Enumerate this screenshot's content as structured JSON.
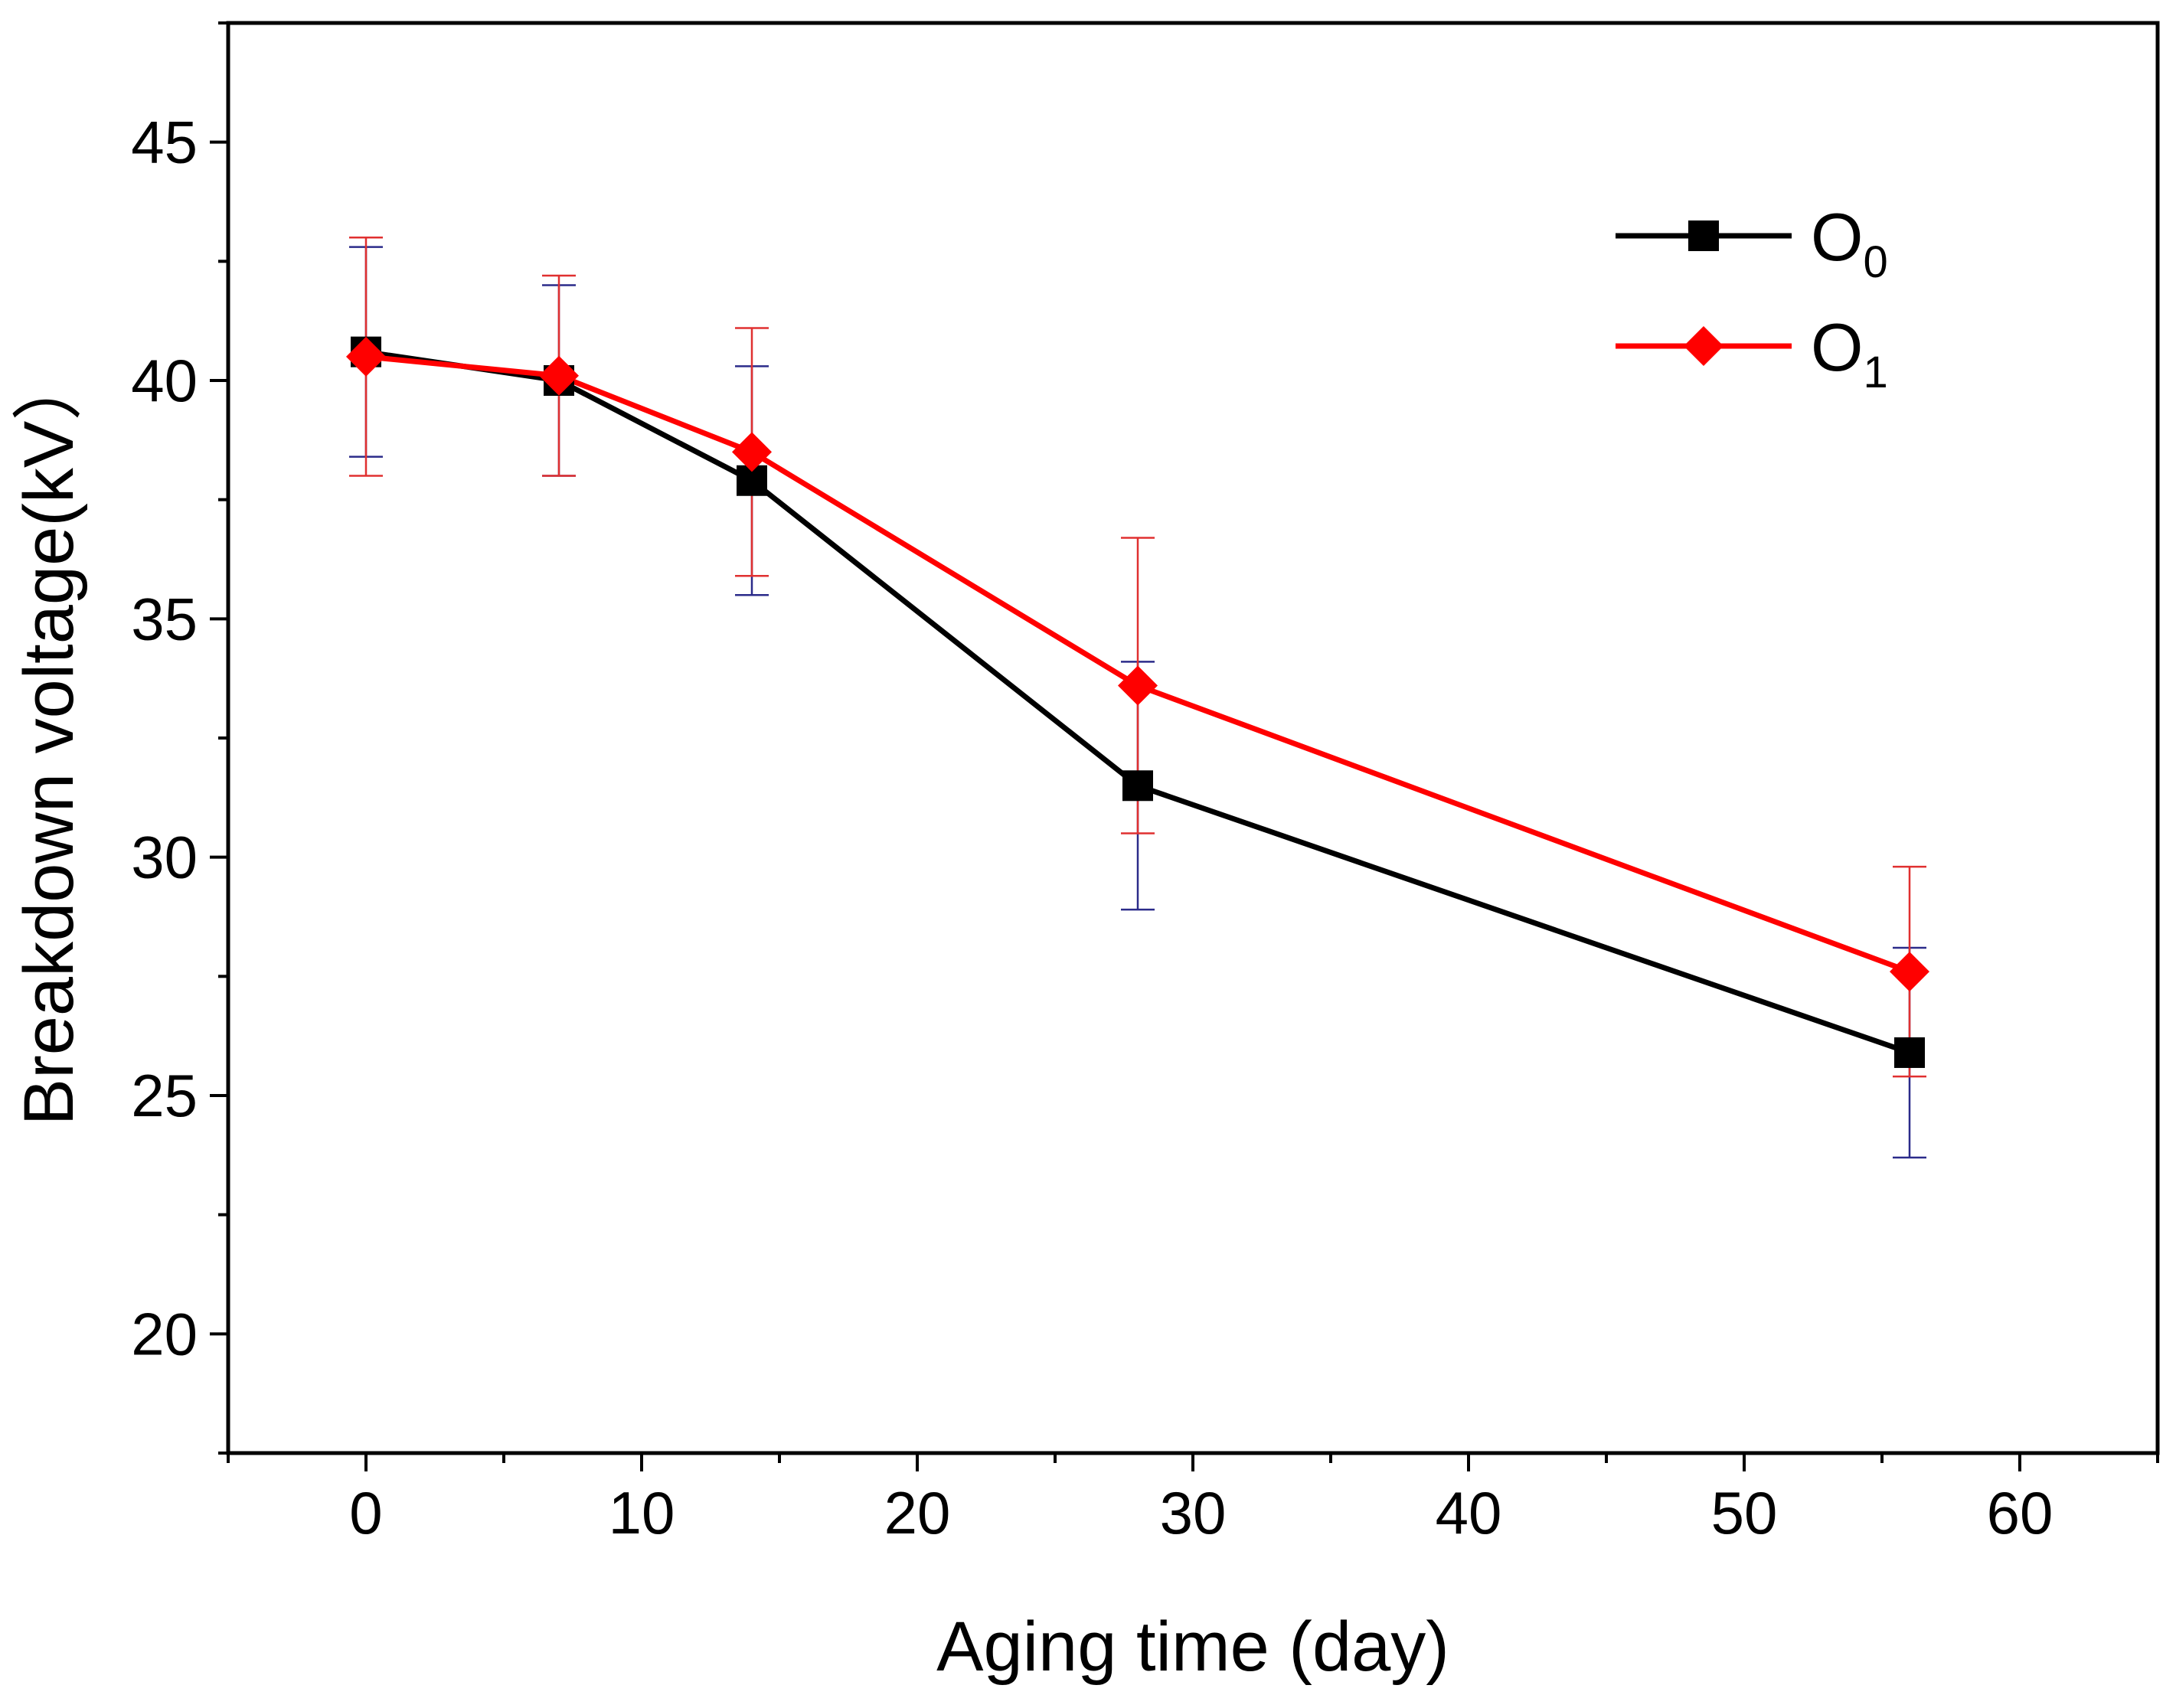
{
  "chart_data": {
    "type": "line",
    "title": "",
    "xlabel": "Aging time (day)",
    "ylabel": "Breakdown voltage(kV）",
    "xlim": [
      -5,
      65
    ],
    "ylim": [
      17.5,
      47.5
    ],
    "x_ticks": [
      0,
      10,
      20,
      30,
      40,
      50,
      60
    ],
    "x_tick_labels": [
      "0",
      "10",
      "20",
      "30",
      "40",
      "50",
      "60"
    ],
    "y_ticks": [
      20,
      25,
      30,
      35,
      40,
      45
    ],
    "y_tick_labels": [
      "20",
      "25",
      "30",
      "35",
      "40",
      "45"
    ],
    "grid": false,
    "legend_position": "top-right",
    "x": [
      0,
      7,
      14,
      28,
      56
    ],
    "series": [
      {
        "name": "O0",
        "label_main": "O",
        "label_sub": "0",
        "color": "#000000",
        "marker": "square",
        "values": [
          40.6,
          40.0,
          37.9,
          31.5,
          25.9
        ],
        "error": [
          2.2,
          2.0,
          2.4,
          2.6,
          2.2
        ],
        "error_color": "#2b2b8a"
      },
      {
        "name": "O1",
        "label_main": "O",
        "label_sub": "1",
        "color": "#ff0000",
        "marker": "diamond",
        "values": [
          40.5,
          40.1,
          38.5,
          33.6,
          27.6
        ],
        "error": [
          2.5,
          2.1,
          2.6,
          3.1,
          2.2
        ],
        "error_color": "#e03030"
      }
    ]
  }
}
